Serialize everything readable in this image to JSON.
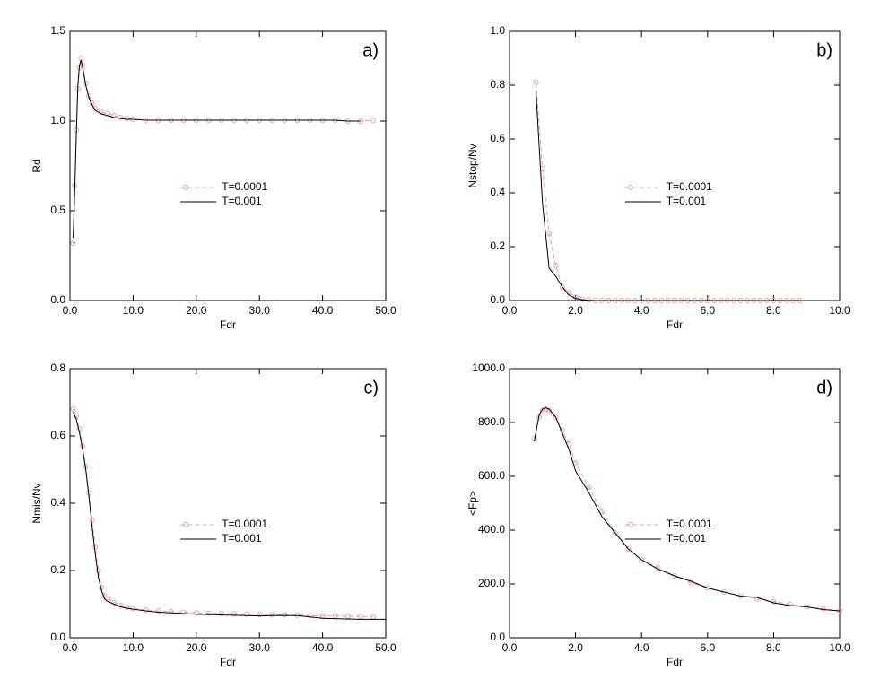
{
  "chart_data": [
    {
      "type": "line",
      "annotation": "a)",
      "x_label": "Fdr",
      "y_label": "Rd",
      "legend": "center",
      "x": [
        0.5,
        0.75,
        1,
        1.25,
        1.5,
        1.75,
        2,
        2.5,
        3,
        3.5,
        4,
        5,
        6,
        7,
        8,
        9,
        10,
        12,
        14,
        16,
        18,
        20,
        22,
        24,
        26,
        28,
        30,
        32,
        34,
        36,
        38,
        40,
        42,
        44,
        46,
        48
      ],
      "series": [
        {
          "name": "T=0.0001",
          "color": "#e8a0a0",
          "line_style": "dashed",
          "marker": "circle",
          "values": [
            0.32,
            0.64,
            0.95,
            1.18,
            1.3,
            1.35,
            1.31,
            1.21,
            1.14,
            1.1,
            1.07,
            1.05,
            1.04,
            1.03,
            1.02,
            1.015,
            1.01,
            1.005,
            1.005,
            1.005,
            1.005,
            1.005,
            1.005,
            1.005,
            1.005,
            1.005,
            1.005,
            1.005,
            1.005,
            1.005,
            1.005,
            1.005,
            1.005,
            1.0,
            1.0,
            1.005
          ]
        },
        {
          "name": "T=0.001",
          "color": "#000000",
          "line_style": "solid",
          "marker": "none",
          "values": [
            0.35,
            0.6,
            0.92,
            1.2,
            1.31,
            1.34,
            1.3,
            1.2,
            1.13,
            1.09,
            1.06,
            1.04,
            1.03,
            1.02,
            1.015,
            1.01,
            1.01,
            1.005,
            1.005,
            1.005,
            1.005,
            1.005,
            1.005,
            1.005,
            1.005,
            1.005,
            1.005,
            1.005,
            1.005,
            1.005,
            1.005,
            1.005,
            1.005,
            1.0,
            1.0,
            null
          ]
        }
      ],
      "xlim": [
        0,
        50
      ],
      "ylim": [
        0,
        1.5
      ],
      "xticks": [
        {
          "value": 0,
          "label": "0.0"
        },
        {
          "value": 10,
          "label": "10.0"
        },
        {
          "value": 20,
          "label": "20.0"
        },
        {
          "value": 30,
          "label": "30.0"
        },
        {
          "value": 40,
          "label": "40.0"
        },
        {
          "value": 50,
          "label": "50.0"
        }
      ],
      "yticks": [
        {
          "value": 0,
          "label": "0.0"
        },
        {
          "value": 0.5,
          "label": "0.5"
        },
        {
          "value": 1,
          "label": "1.0"
        },
        {
          "value": 1.5,
          "label": "1.5"
        }
      ]
    },
    {
      "type": "line",
      "annotation": "b)",
      "x_label": "Fdr",
      "y_label": "Nstop/Nv",
      "legend": "center",
      "x": [
        0.8,
        1.0,
        1.2,
        1.4,
        1.6,
        1.8,
        2.0,
        2.2,
        2.4,
        2.6,
        2.8,
        3.0,
        3.2,
        3.4,
        3.6,
        3.8,
        4.0,
        4.2,
        4.4,
        4.6,
        4.8,
        5.0,
        5.2,
        5.4,
        5.6,
        5.8,
        6.0,
        6.2,
        6.4,
        6.6,
        6.8,
        7.0,
        7.2,
        7.4,
        7.6,
        7.8,
        8.0,
        8.2,
        8.4,
        8.6,
        8.8
      ],
      "series": [
        {
          "name": "T=0.0001",
          "color": "#e8a0a0",
          "line_style": "dashed",
          "marker": "circle",
          "values": [
            0.81,
            0.49,
            0.25,
            0.13,
            0.05,
            0.03,
            0.012,
            0.005,
            0.002,
            0,
            0,
            0,
            0,
            0,
            0,
            0,
            0,
            0,
            0,
            0,
            0,
            0,
            0,
            0,
            0,
            0,
            0,
            0,
            0,
            0,
            0,
            0,
            0,
            0,
            0,
            0,
            0,
            0,
            0,
            0,
            0
          ]
        },
        {
          "name": "T=0.001",
          "color": "#000000",
          "line_style": "solid",
          "marker": "none",
          "values": [
            0.78,
            0.36,
            0.12,
            0.09,
            0.05,
            0.02,
            0.008,
            0.003,
            0.001,
            0,
            0,
            0,
            0,
            0,
            0,
            0,
            0,
            0,
            0,
            0,
            0,
            0,
            0,
            0,
            0,
            0,
            0,
            0,
            0,
            0,
            0,
            0,
            0,
            0,
            0,
            0,
            0,
            0,
            0,
            0,
            0
          ]
        }
      ],
      "xlim": [
        0,
        10
      ],
      "ylim": [
        0,
        1
      ],
      "xticks": [
        {
          "value": 0,
          "label": "0.0"
        },
        {
          "value": 2,
          "label": "2.0"
        },
        {
          "value": 4,
          "label": "4.0"
        },
        {
          "value": 6,
          "label": "6.0"
        },
        {
          "value": 8,
          "label": "8.0"
        },
        {
          "value": 10,
          "label": "10.0"
        }
      ],
      "yticks": [
        {
          "value": 0,
          "label": "0.0"
        },
        {
          "value": 0.2,
          "label": "0.2"
        },
        {
          "value": 0.4,
          "label": "0.4"
        },
        {
          "value": 0.6,
          "label": "0.6"
        },
        {
          "value": 0.8,
          "label": "0.8"
        },
        {
          "value": 1,
          "label": "1.0"
        }
      ]
    },
    {
      "type": "line",
      "annotation": "c)",
      "x_label": "Fdr",
      "y_label": "Nmis/Nv",
      "legend": "center",
      "x": [
        0.5,
        1,
        1.5,
        2,
        2.5,
        3,
        3.5,
        4,
        4.5,
        5,
        5.5,
        6,
        7,
        8,
        9,
        10,
        12,
        14,
        16,
        18,
        20,
        22,
        24,
        26,
        28,
        30,
        32,
        34,
        36,
        38,
        40,
        42,
        44,
        46,
        48,
        50
      ],
      "series": [
        {
          "name": "T=0.0001",
          "color": "#e8a0a0",
          "line_style": "dashed",
          "marker": "circle",
          "values": [
            0.68,
            0.66,
            0.62,
            0.57,
            0.51,
            0.43,
            0.35,
            0.27,
            0.2,
            0.15,
            0.125,
            0.115,
            0.105,
            0.097,
            0.09,
            0.087,
            0.083,
            0.08,
            0.078,
            0.076,
            0.074,
            0.073,
            0.072,
            0.071,
            0.07,
            0.069,
            0.068,
            0.068,
            0.067,
            0.066,
            0.065,
            0.065,
            0.064,
            0.064,
            0.063,
            null
          ]
        },
        {
          "name": "T=0.001",
          "color": "#000000",
          "line_style": "solid",
          "marker": "none",
          "values": [
            0.67,
            0.65,
            0.61,
            0.56,
            0.5,
            0.42,
            0.33,
            0.25,
            0.18,
            0.14,
            0.115,
            0.108,
            0.1,
            0.092,
            0.088,
            0.085,
            0.08,
            0.076,
            0.074,
            0.072,
            0.07,
            0.069,
            0.068,
            0.067,
            0.066,
            0.065,
            0.066,
            0.066,
            0.066,
            0.062,
            0.058,
            0.057,
            0.056,
            0.055,
            0.055,
            0.055
          ]
        }
      ],
      "xlim": [
        0,
        50
      ],
      "ylim": [
        0,
        0.8
      ],
      "xticks": [
        {
          "value": 0,
          "label": "0.0"
        },
        {
          "value": 10,
          "label": "10.0"
        },
        {
          "value": 20,
          "label": "20.0"
        },
        {
          "value": 30,
          "label": "30.0"
        },
        {
          "value": 40,
          "label": "40.0"
        },
        {
          "value": 50,
          "label": "50.0"
        }
      ],
      "yticks": [
        {
          "value": 0,
          "label": "0.0"
        },
        {
          "value": 0.2,
          "label": "0.2"
        },
        {
          "value": 0.4,
          "label": "0.4"
        },
        {
          "value": 0.6,
          "label": "0.6"
        },
        {
          "value": 0.8,
          "label": "0.8"
        }
      ]
    },
    {
      "type": "line",
      "annotation": "d)",
      "x_label": "Fdr",
      "y_label": "<Fp>",
      "legend": "center",
      "x": [
        0.75,
        0.9,
        1.0,
        1.1,
        1.2,
        1.4,
        1.6,
        1.8,
        2.0,
        2.4,
        2.8,
        3.2,
        3.6,
        4.0,
        4.5,
        5,
        5.5,
        6,
        6.5,
        7,
        7.5,
        8,
        8.5,
        9,
        9.5,
        10
      ],
      "series": [
        {
          "name": "T=0.0001",
          "color": "#e8a0a0",
          "line_style": "dashed",
          "marker": "circle",
          "values": [
            740,
            820,
            845,
            850,
            845,
            820,
            770,
            720,
            650,
            560,
            470,
            390,
            330,
            290,
            260,
            230,
            205,
            185,
            170,
            155,
            145,
            135,
            125,
            115,
            108,
            100
          ]
        },
        {
          "name": "T=0.001",
          "color": "#000000",
          "line_style": "solid",
          "marker": "none",
          "values": [
            730,
            830,
            850,
            855,
            850,
            820,
            760,
            700,
            620,
            540,
            450,
            390,
            330,
            290,
            255,
            230,
            210,
            185,
            170,
            155,
            150,
            130,
            120,
            115,
            105,
            100
          ]
        }
      ],
      "xlim": [
        0,
        10
      ],
      "ylim": [
        0,
        1000
      ],
      "xticks": [
        {
          "value": 0,
          "label": "0.0"
        },
        {
          "value": 2,
          "label": "2.0"
        },
        {
          "value": 4,
          "label": "4.0"
        },
        {
          "value": 6,
          "label": "6.0"
        },
        {
          "value": 8,
          "label": "8.0"
        },
        {
          "value": 10,
          "label": "10.0"
        }
      ],
      "yticks": [
        {
          "value": 0,
          "label": "0.0"
        },
        {
          "value": 200,
          "label": "200.0"
        },
        {
          "value": 400,
          "label": "400.0"
        },
        {
          "value": 600,
          "label": "600.0"
        },
        {
          "value": 800,
          "label": "800.0"
        },
        {
          "value": 1000,
          "label": "1000.0"
        }
      ]
    }
  ]
}
